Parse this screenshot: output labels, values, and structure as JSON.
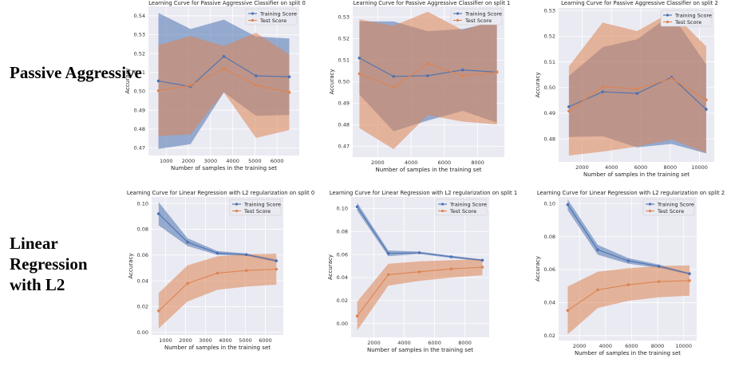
{
  "row_labels": [
    "Passive Aggressive",
    "Linear Regression with L2"
  ],
  "colors": {
    "train": "#4c72b0",
    "test": "#dd8452",
    "panel_bg": "#eaeaf2",
    "grid": "#ffffff"
  },
  "legend": [
    "Training Score",
    "Test Score"
  ],
  "chart_data": [
    {
      "type": "line",
      "title": "Learning Curve for Passive Aggressive Classifier on split 0",
      "xlabel": "Number of samples in the training set",
      "ylabel": "Accuracy",
      "legend_position": "top-right",
      "grid": true,
      "xlim": [
        200,
        7000
      ],
      "ylim": [
        0.466,
        0.545
      ],
      "xticks": [
        1000,
        2000,
        3000,
        4000,
        5000,
        6000
      ],
      "yticks": [
        0.47,
        0.48,
        0.49,
        0.5,
        0.51,
        0.52,
        0.53,
        0.54
      ],
      "x": [
        650,
        2100,
        3600,
        5050,
        6550
      ],
      "series": [
        {
          "name": "Training Score",
          "values": [
            0.5055,
            0.5025,
            0.5185,
            0.5082,
            0.5077
          ],
          "upper": [
            0.5415,
            0.533,
            0.538,
            0.529,
            0.528
          ],
          "lower": [
            0.4695,
            0.472,
            0.4995,
            0.487,
            0.4875
          ]
        },
        {
          "name": "Test Score",
          "values": [
            0.5003,
            0.5032,
            0.512,
            0.5032,
            0.4995
          ],
          "upper": [
            0.5245,
            0.5293,
            0.524,
            0.531,
            0.5195
          ],
          "lower": [
            0.4763,
            0.4772,
            0.4995,
            0.4753,
            0.4795
          ]
        }
      ]
    },
    {
      "type": "line",
      "title": "Learning Curve for Passive Aggressive Classifier on split 1",
      "xlabel": "Number of samples in the training set",
      "ylabel": "Accuracy",
      "legend_position": "top-right",
      "grid": true,
      "xlim": [
        500,
        9600
      ],
      "ylim": [
        0.465,
        0.535
      ],
      "xticks": [
        2000,
        4000,
        6000,
        8000
      ],
      "yticks": [
        0.47,
        0.48,
        0.49,
        0.5,
        0.51,
        0.52,
        0.53
      ],
      "x": [
        900,
        2950,
        5000,
        7100,
        9150
      ],
      "series": [
        {
          "name": "Training Score",
          "values": [
            0.511,
            0.5025,
            0.5028,
            0.5055,
            0.5045
          ],
          "upper": [
            0.528,
            0.528,
            0.5235,
            0.5245,
            0.528
          ],
          "lower": [
            0.494,
            0.477,
            0.482,
            0.4865,
            0.481
          ]
        },
        {
          "name": "Test Score",
          "values": [
            0.5037,
            0.4975,
            0.5085,
            0.5027,
            0.5045
          ],
          "upper": [
            0.529,
            0.526,
            0.5325,
            0.524,
            0.529
          ],
          "lower": [
            0.4785,
            0.4687,
            0.4845,
            0.4815,
            0.4802
          ]
        }
      ]
    },
    {
      "type": "line",
      "title": "Learning Curve for Passive Aggressive Classifier on split 2",
      "xlabel": "Number of samples in the training set",
      "ylabel": "Accuracy",
      "legend_position": "top-right",
      "grid": true,
      "xlim": [
        400,
        11000
      ],
      "ylim": [
        0.471,
        0.531
      ],
      "xticks": [
        2000,
        4000,
        6000,
        8000,
        10000
      ],
      "yticks": [
        0.48,
        0.49,
        0.5,
        0.51,
        0.52,
        0.53
      ],
      "x": [
        1100,
        3400,
        5750,
        8100,
        10450
      ],
      "series": [
        {
          "name": "Training Score",
          "values": [
            0.4925,
            0.4983,
            0.4977,
            0.504,
            0.4915
          ],
          "upper": [
            0.5045,
            0.5157,
            0.5188,
            0.5285,
            0.509
          ],
          "lower": [
            0.4807,
            0.481,
            0.4767,
            0.478,
            0.4743
          ]
        },
        {
          "name": "Test Score",
          "values": [
            0.4908,
            0.5003,
            0.4995,
            0.5035,
            0.4952
          ],
          "upper": [
            0.5082,
            0.5253,
            0.522,
            0.5295,
            0.516
          ],
          "lower": [
            0.4735,
            0.475,
            0.477,
            0.4797,
            0.4745
          ]
        }
      ]
    },
    {
      "type": "line",
      "title": "Learning Curve for Linear Regression with L2 regularization on split 0",
      "xlabel": "Number of samples in the training set",
      "ylabel": "Accuracy",
      "legend_position": "top-right",
      "grid": true,
      "xlim": [
        300,
        6900
      ],
      "ylim": [
        -0.002,
        0.105
      ],
      "xticks": [
        1000,
        2000,
        3000,
        4000,
        5000,
        6000
      ],
      "yticks": [
        0.0,
        0.02,
        0.04,
        0.06,
        0.08,
        0.1
      ],
      "x": [
        650,
        2100,
        3600,
        5050,
        6550
      ],
      "series": [
        {
          "name": "Training Score",
          "values": [
            0.092,
            0.07,
            0.0615,
            0.0603,
            0.0555
          ],
          "upper": [
            0.101,
            0.073,
            0.063,
            0.0612,
            0.0565
          ],
          "lower": [
            0.083,
            0.067,
            0.06,
            0.0594,
            0.0545
          ]
        },
        {
          "name": "Test Score",
          "values": [
            0.0167,
            0.038,
            0.046,
            0.048,
            0.049
          ],
          "upper": [
            0.0305,
            0.052,
            0.059,
            0.0605,
            0.061
          ],
          "lower": [
            0.003,
            0.024,
            0.033,
            0.0355,
            0.037
          ]
        }
      ]
    },
    {
      "type": "line",
      "title": "Learning Curve for Linear Regression with L2 regularization on split 1",
      "xlabel": "Number of samples in the training set",
      "ylabel": "Accuracy",
      "legend_position": "top-right",
      "grid": true,
      "xlim": [
        500,
        9600
      ],
      "ylim": [
        -0.012,
        0.11
      ],
      "xticks": [
        2000,
        4000,
        6000,
        8000
      ],
      "yticks": [
        0.0,
        0.02,
        0.04,
        0.06,
        0.08,
        0.1
      ],
      "x": [
        900,
        2950,
        5000,
        7100,
        9150
      ],
      "series": [
        {
          "name": "Training Score",
          "values": [
            0.1015,
            0.061,
            0.0615,
            0.058,
            0.055
          ],
          "upper": [
            0.105,
            0.0635,
            0.0625,
            0.059,
            0.0558
          ],
          "lower": [
            0.098,
            0.0585,
            0.0605,
            0.057,
            0.0542
          ]
        },
        {
          "name": "Test Score",
          "values": [
            0.0065,
            0.0425,
            0.045,
            0.0475,
            0.049
          ],
          "upper": [
            0.019,
            0.052,
            0.054,
            0.055,
            0.056
          ],
          "lower": [
            -0.006,
            0.033,
            0.037,
            0.04,
            0.042
          ]
        }
      ]
    },
    {
      "type": "line",
      "title": "Learning Curve for Linear Regression with L2 regularization on split 2",
      "xlabel": "Number of samples in the training set",
      "ylabel": "Accuracy",
      "legend_position": "top-right",
      "grid": true,
      "xlim": [
        400,
        11000
      ],
      "ylim": [
        0.017,
        0.104
      ],
      "xticks": [
        2000,
        4000,
        6000,
        8000,
        10000
      ],
      "yticks": [
        0.02,
        0.04,
        0.06,
        0.08,
        0.1
      ],
      "x": [
        1100,
        3400,
        5750,
        8100,
        10450
      ],
      "series": [
        {
          "name": "Training Score",
          "values": [
            0.0993,
            0.072,
            0.0653,
            0.062,
            0.0575
          ],
          "upper": [
            0.1025,
            0.075,
            0.067,
            0.063,
            0.058
          ],
          "lower": [
            0.096,
            0.069,
            0.0636,
            0.061,
            0.057
          ]
        },
        {
          "name": "Test Score",
          "values": [
            0.0352,
            0.0477,
            0.0508,
            0.0527,
            0.0533
          ],
          "upper": [
            0.0497,
            0.0587,
            0.0608,
            0.0622,
            0.0625
          ],
          "lower": [
            0.0207,
            0.0367,
            0.041,
            0.0432,
            0.0442
          ]
        }
      ]
    }
  ]
}
